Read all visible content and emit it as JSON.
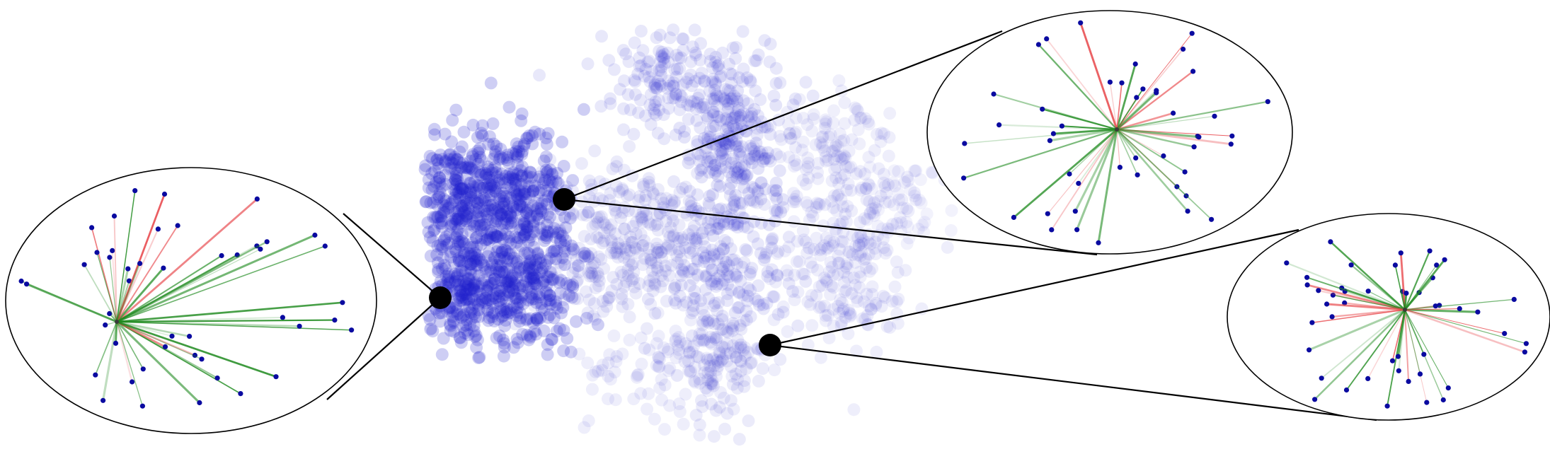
{
  "figure": {
    "background": "#ffffff",
    "cloud_color": "#2222cc",
    "node_color": "#0a0aa0",
    "edge_green": "#1e8a1e",
    "edge_red": "#e8484c",
    "anchor_color": "#000000",
    "ellipse_stroke": "#000000",
    "insets": [
      {
        "id": "inset-left"
      },
      {
        "id": "inset-top-right"
      },
      {
        "id": "inset-bottom-right"
      }
    ]
  }
}
